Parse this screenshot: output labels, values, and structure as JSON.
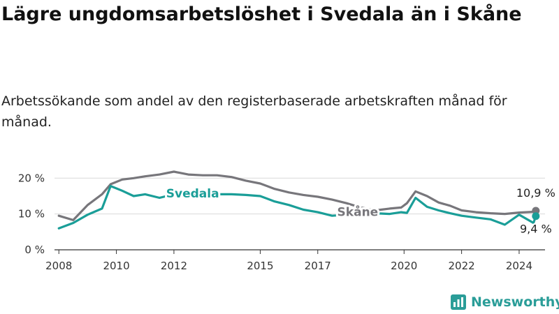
{
  "title": "Lägre ungdomsarbetslöshet i Svedala än i Skåne",
  "subtitle": "Arbetssökande som andel av den registerbaserade arbetskraften månad för månad.",
  "brand": {
    "name": "Newsworthy",
    "icon": "newsworthy-logo-icon",
    "color": "#2a9d98"
  },
  "chart_data": {
    "type": "line",
    "x_range": [
      2007.8,
      2024.9
    ],
    "ylim": [
      0,
      22
    ],
    "yticks": [
      {
        "value": 0,
        "label": "0 %"
      },
      {
        "value": 10,
        "label": "10 %"
      },
      {
        "value": 20,
        "label": "20 %"
      }
    ],
    "xticks": [
      {
        "value": 2008,
        "label": "2008"
      },
      {
        "value": 2010,
        "label": "2010"
      },
      {
        "value": 2012,
        "label": "2012"
      },
      {
        "value": 2015,
        "label": "2015"
      },
      {
        "value": 2017,
        "label": "2017"
      },
      {
        "value": 2020,
        "label": "2020"
      },
      {
        "value": 2022,
        "label": "2022"
      },
      {
        "value": 2024,
        "label": "2024"
      }
    ],
    "grid": true,
    "series": [
      {
        "name": "Skåne",
        "color": "#77767b",
        "x": [
          2008.0,
          2008.5,
          2009.0,
          2009.5,
          2009.8,
          2010.2,
          2010.6,
          2011.0,
          2011.5,
          2012.0,
          2012.5,
          2013.0,
          2013.5,
          2014.0,
          2014.5,
          2015.0,
          2015.5,
          2016.0,
          2016.5,
          2017.0,
          2017.5,
          2018.0,
          2018.5,
          2019.0,
          2019.5,
          2019.9,
          2020.1,
          2020.4,
          2020.8,
          2021.2,
          2021.6,
          2022.0,
          2022.5,
          2023.0,
          2023.5,
          2024.0,
          2024.5,
          2024.58
        ],
        "values": [
          9.5,
          8.3,
          12.5,
          15.5,
          18.3,
          19.6,
          20.0,
          20.5,
          21.0,
          21.8,
          21.0,
          20.8,
          20.8,
          20.3,
          19.3,
          18.5,
          17.0,
          16.0,
          15.3,
          14.8,
          14.0,
          13.0,
          11.8,
          11.0,
          11.5,
          11.8,
          13.0,
          16.3,
          15.0,
          13.2,
          12.3,
          11.0,
          10.5,
          10.2,
          10.0,
          10.4,
          10.6,
          10.9
        ]
      },
      {
        "name": "Svedala",
        "color": "#1a9e98",
        "x": [
          2008.0,
          2008.5,
          2009.0,
          2009.5,
          2009.8,
          2010.2,
          2010.6,
          2011.0,
          2011.5,
          2012.0,
          2012.5,
          2013.0,
          2013.5,
          2014.0,
          2014.5,
          2015.0,
          2015.5,
          2016.0,
          2016.5,
          2017.0,
          2017.5,
          2018.0,
          2018.5,
          2019.0,
          2019.5,
          2019.9,
          2020.1,
          2020.4,
          2020.8,
          2021.2,
          2021.6,
          2022.0,
          2022.5,
          2023.0,
          2023.5,
          2024.0,
          2024.5,
          2024.58
        ],
        "values": [
          6.0,
          7.5,
          9.8,
          11.5,
          17.8,
          16.5,
          15.0,
          15.5,
          14.5,
          15.5,
          15.5,
          15.7,
          15.5,
          15.5,
          15.3,
          15.0,
          13.5,
          12.5,
          11.2,
          10.5,
          9.5,
          9.8,
          9.5,
          10.2,
          10.0,
          10.5,
          10.3,
          14.5,
          12.0,
          11.0,
          10.2,
          9.5,
          9.0,
          8.5,
          7.0,
          9.8,
          7.5,
          9.4
        ]
      }
    ],
    "annotations": [
      {
        "text": "10,9 %",
        "series": "Skåne"
      },
      {
        "text": "9,4 %",
        "series": "Svedala"
      }
    ]
  }
}
